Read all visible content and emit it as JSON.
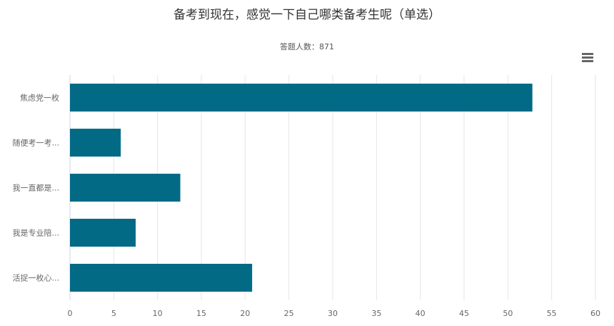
{
  "chart_data": {
    "type": "bar",
    "orientation": "horizontal",
    "title": "备考到现在，感觉一下自己哪类备考生呢（单选）",
    "subtitle": "答题人数：871",
    "categories": [
      "焦虑党一枚",
      "随便考一考...",
      "我一直都是...",
      "我是专业陪...",
      "活捉一枚心..."
    ],
    "values": [
      52.8,
      5.8,
      12.6,
      7.5,
      20.8
    ],
    "xlim": [
      0,
      60
    ],
    "xticks": [
      0,
      5,
      10,
      15,
      20,
      25,
      30,
      35,
      40,
      45,
      50,
      55,
      60
    ],
    "xlabel": "",
    "ylabel": "",
    "grid": true,
    "bar_color": "#036a86"
  },
  "toolbar": {
    "menu_icon": "hamburger-menu-icon"
  }
}
